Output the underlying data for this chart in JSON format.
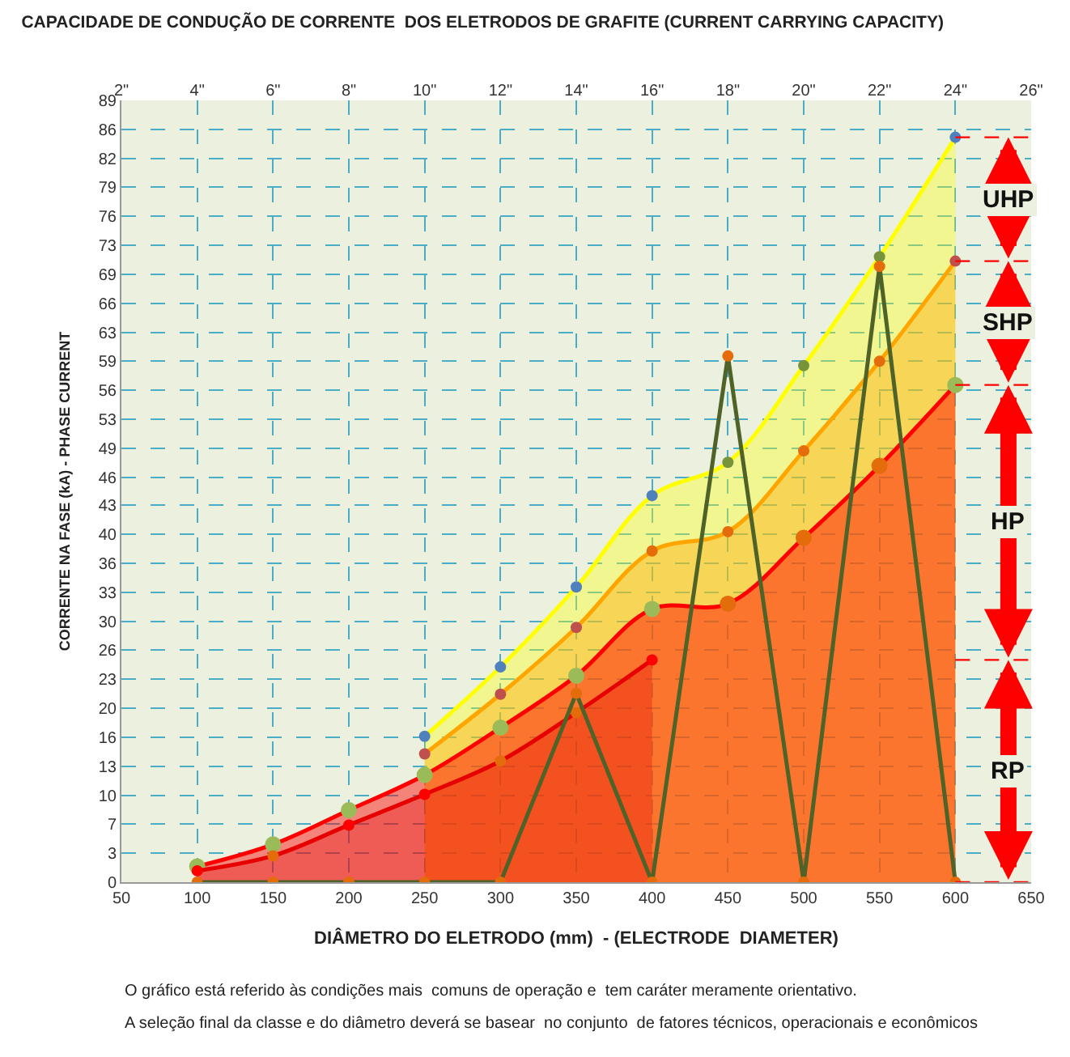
{
  "chart_data": {
    "type": "line",
    "title": "CAPACIDADE DE CONDUÇÃO DE CORRENTE  DOS ELETRODOS DE GRAFITE (CURRENT CARRYING CAPACITY)",
    "xlabel": "DIÂMETRO DO ELETRODO (mm)  - (ELECTRODE  DIAMETER)",
    "ylabel": "CORRENTE NA FASE (kA) - PHASE CURRENT",
    "xlim": [
      50,
      650
    ],
    "xticks": [
      50,
      100,
      150,
      200,
      250,
      300,
      350,
      400,
      450,
      500,
      550,
      600,
      650
    ],
    "x2lim": [
      2,
      26
    ],
    "x2ticks": [
      {
        "value": 2,
        "label": "2\""
      },
      {
        "value": 4,
        "label": "4\""
      },
      {
        "value": 6,
        "label": "6\""
      },
      {
        "value": 8,
        "label": "8\""
      },
      {
        "value": 10,
        "label": "10\""
      },
      {
        "value": 12,
        "label": "12\""
      },
      {
        "value": 14,
        "label": "14\""
      },
      {
        "value": 16,
        "label": "16\""
      },
      {
        "value": 18,
        "label": "18\""
      },
      {
        "value": 20,
        "label": "20\""
      },
      {
        "value": 22,
        "label": "22\""
      },
      {
        "value": 24,
        "label": "24\""
      },
      {
        "value": 26,
        "label": "26\""
      }
    ],
    "ylim": [
      0,
      89
    ],
    "yticks": [
      0,
      {
        "value": 3.3,
        "label": "3"
      },
      {
        "value": 6.6,
        "label": "7"
      },
      {
        "value": 9.9,
        "label": "10"
      },
      {
        "value": 13.2,
        "label": "13"
      },
      {
        "value": 16.5,
        "label": "16"
      },
      {
        "value": 19.8,
        "label": "20"
      },
      {
        "value": 23.1,
        "label": "23"
      },
      {
        "value": 26.4,
        "label": "26"
      },
      {
        "value": 29.7,
        "label": "30"
      },
      {
        "value": 33,
        "label": "33"
      },
      {
        "value": 36.3,
        "label": "36"
      },
      {
        "value": 39.6,
        "label": "40"
      },
      {
        "value": 42.9,
        "label": "43"
      },
      {
        "value": 46.1,
        "label": "46"
      },
      {
        "value": 49.4,
        "label": "49"
      },
      {
        "value": 52.7,
        "label": "53"
      },
      {
        "value": 56,
        "label": "56"
      },
      {
        "value": 59.3,
        "label": "59"
      },
      {
        "value": 62.6,
        "label": "63"
      },
      {
        "value": 65.9,
        "label": "66"
      },
      {
        "value": 69.2,
        "label": "69"
      },
      {
        "value": 72.5,
        "label": "73"
      },
      {
        "value": 75.8,
        "label": "76"
      },
      {
        "value": 79.1,
        "label": "79"
      },
      {
        "value": 82.4,
        "label": "82"
      },
      {
        "value": 85.7,
        "label": "86"
      },
      89
    ],
    "grid": true,
    "legend": false,
    "marker": "circle",
    "series": [
      {
        "type": "area",
        "color": "#ffff00",
        "x": [
          250,
          300,
          350,
          400,
          450,
          500,
          550,
          600
        ],
        "values": [
          16.6,
          24.5,
          33.6,
          44,
          47.8,
          58.8,
          71.2,
          84.8
        ],
        "colors": [
          "#4f81bd",
          "#4f81bd",
          "#4f81bd",
          "#4f81bd",
          "#77933c",
          "#77933c",
          "#77933c",
          "#4f81bd"
        ]
      },
      {
        "type": "area",
        "color": "#ffa500",
        "x": [
          250,
          300,
          350,
          400,
          450,
          500,
          550,
          600
        ],
        "values": [
          14.6,
          21.4,
          29,
          37.7,
          39.9,
          49.1,
          59.3,
          70.7
        ],
        "colors": [
          "#c0504d",
          "#c0504d",
          "#c0504d",
          "#e46c0a",
          "#e46c0a",
          "#e46c0a",
          "#e46c0a",
          "#c0504d"
        ]
      },
      {
        "type": "area",
        "color": "#ff0000",
        "x": [
          100,
          150,
          200,
          250,
          300,
          350,
          400,
          450,
          500,
          550,
          600
        ],
        "values": [
          1.8,
          4.3,
          8.2,
          12.2,
          17.6,
          23.5,
          31.1,
          31.7,
          39.2,
          47.4,
          56.6
        ],
        "colors": [
          "#9bbb59",
          "#9bbb59",
          "#9bbb59",
          "#9bbb59",
          "#9bbb59",
          "#9bbb59",
          "#9bbb59",
          "#e46c0a",
          "#e46c0a",
          "#e46c0a",
          "#9bbb59"
        ]
      },
      {
        "type": "area",
        "color": "#e60000",
        "x": [
          100,
          150,
          200,
          250,
          300,
          350,
          400
        ],
        "values": [
          1.3,
          3,
          6.5,
          10,
          13.8,
          19.3,
          25.3
        ],
        "colors": [
          "#ff0000",
          "#e46c0a",
          "#ff0000",
          "#ff0000",
          "#e46c0a",
          "#e46c0a",
          "#ff0000"
        ]
      },
      {
        "color": "#4f6228",
        "x": [
          100,
          150,
          200,
          250,
          300,
          350,
          400,
          450,
          500,
          550,
          600
        ],
        "values": [
          0,
          0,
          0,
          0,
          0,
          21.5,
          0,
          59.9,
          0,
          70.1,
          0
        ],
        "colors": [
          "#e46c0a",
          "#e46c0a",
          "#e46c0a",
          "#e46c0a",
          "#e46c0a",
          "#e46c0a",
          "#e46c0a",
          "#e46c0a",
          "#e46c0a",
          "#e46c0a",
          "#e46c0a"
        ]
      }
    ],
    "ref_lines": [
      {
        "axis": "y",
        "value": 84.8,
        "color": "#ff0000",
        "line_style": "dashed"
      },
      {
        "axis": "y",
        "value": 70.7,
        "color": "#ff0000",
        "line_style": "dashed"
      },
      {
        "axis": "y",
        "value": 56.6,
        "color": "#ff0000",
        "line_style": "dashed"
      },
      {
        "axis": "y",
        "value": 25.3,
        "color": "#ff0000",
        "line_style": "dashed"
      },
      {
        "axis": "y",
        "value": 0,
        "color": "#ff0000",
        "line_style": "dashed"
      }
    ],
    "annotations": [
      "UHP",
      "SHP",
      "HP",
      "RP",
      "O gráfico está referido às condições mais  comuns de operação e  tem caráter meramente orientativo.",
      "A seleção final da classe e do diâmetro deverá se basear  no conjunto  de fatores técnicos, operacionais e econômicos"
    ]
  }
}
